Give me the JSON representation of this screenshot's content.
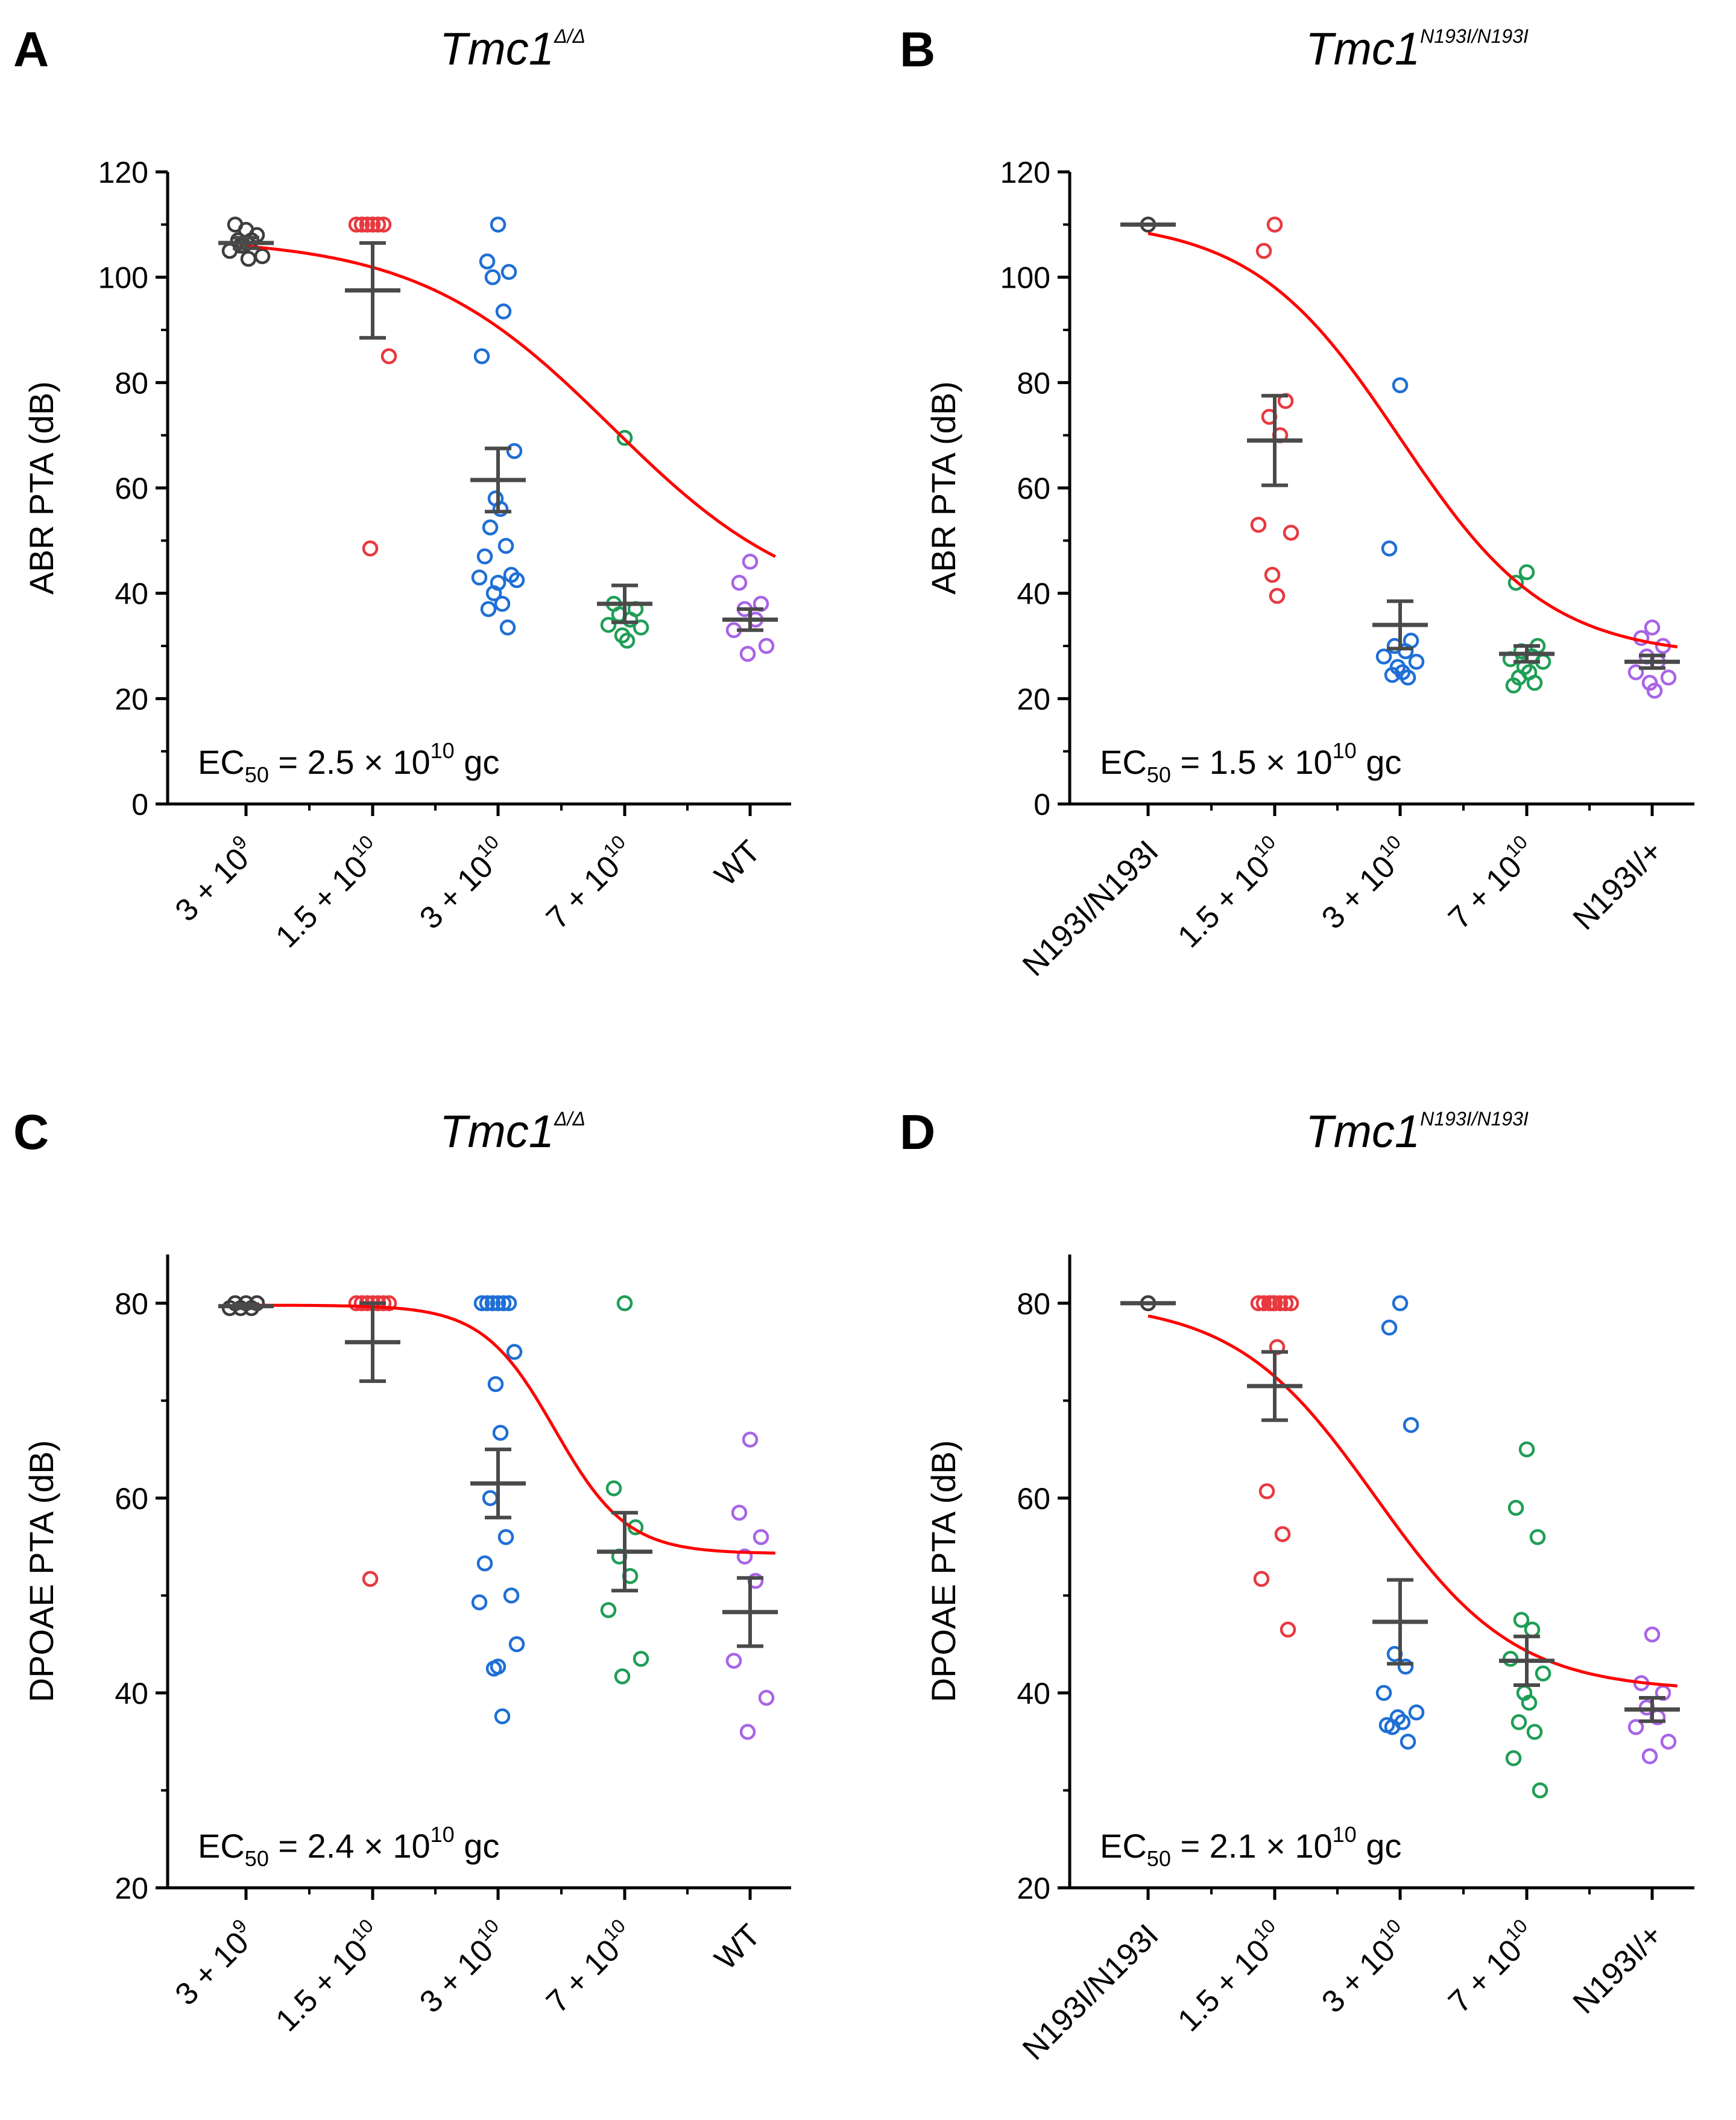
{
  "colors": {
    "group_colors": [
      "#3d3d3d",
      "#e8393f",
      "#1f6fd6",
      "#1f9e56",
      "#a864e6"
    ],
    "fit": "#ff0000",
    "errorbar": "#4a4a4a",
    "axis": "#000000"
  },
  "chart_data": [
    {
      "type": "scatter",
      "panel_label": "A",
      "title_main": "Tmc1",
      "title_sup": "Δ/Δ",
      "ylabel": "ABR PTA (dB)",
      "ylim": [
        0,
        120
      ],
      "yticks": [
        "0",
        "20",
        "40",
        "60",
        "80",
        "100",
        "120"
      ],
      "ytick_values": [
        0,
        20,
        40,
        60,
        80,
        100,
        120
      ],
      "categories": [
        {
          "base": "3 + 10",
          "sup": "9"
        },
        {
          "base": "1.5 + 10",
          "sup": "10"
        },
        {
          "base": "3 + 10",
          "sup": "10"
        },
        {
          "base": "7 + 10",
          "sup": "10"
        },
        {
          "base": "WT",
          "sup": ""
        }
      ],
      "ec50": {
        "prefix": "EC",
        "sub": "50",
        "value": " = 2.5 × 10",
        "exp": "10",
        "unit": " gc"
      },
      "series": [
        {
          "name": "3 + 10^9",
          "points": [
            109,
            110,
            108,
            106,
            107,
            105,
            104,
            106,
            103.5,
            107
          ],
          "mean": 106.5,
          "sem": 1.0
        },
        {
          "name": "1.5 + 10^10",
          "points": [
            110,
            110,
            110,
            110,
            110,
            110,
            85,
            48.5
          ],
          "mean": 97.5,
          "sem": 9.0
        },
        {
          "name": "3 + 10^10",
          "points": [
            110,
            103,
            101,
            100,
            93.5,
            85,
            67,
            58,
            56,
            52.5,
            49,
            47,
            43.5,
            43,
            42.5,
            42,
            40,
            38,
            37,
            33.5
          ],
          "mean": 61.5,
          "sem": 6.0
        },
        {
          "name": "7 + 10^10",
          "points": [
            69.5,
            38,
            37,
            36,
            35,
            34,
            33.5,
            32,
            31
          ],
          "mean": 38,
          "sem": 3.5
        },
        {
          "name": "WT",
          "points": [
            46,
            42,
            38,
            37,
            35,
            33,
            30,
            28.5
          ],
          "mean": 35,
          "sem": 2.0
        }
      ],
      "fit_curve": {
        "top": 107.5,
        "bottom": 35.8,
        "center": 2.9,
        "slope": 1.3
      }
    },
    {
      "type": "scatter",
      "panel_label": "B",
      "title_main": "Tmc1",
      "title_sup": "N193I/N193I",
      "ylabel": "ABR PTA (dB)",
      "ylim": [
        0,
        120
      ],
      "yticks": [
        "0",
        "20",
        "40",
        "60",
        "80",
        "100",
        "120"
      ],
      "ytick_values": [
        0,
        20,
        40,
        60,
        80,
        100,
        120
      ],
      "categories": [
        {
          "base": "N193I/N193I",
          "sup": ""
        },
        {
          "base": "1.5 + 10",
          "sup": "10"
        },
        {
          "base": "3 + 10",
          "sup": "10"
        },
        {
          "base": "7 + 10",
          "sup": "10"
        },
        {
          "base": "N193I/+",
          "sup": ""
        }
      ],
      "ec50": {
        "prefix": "EC",
        "sub": "50",
        "value": " = 1.5 × 10",
        "exp": "10",
        "unit": " gc"
      },
      "series": [
        {
          "name": "N193I/N193I",
          "points": [
            110
          ],
          "mean": 110,
          "sem": 0
        },
        {
          "name": "1.5 + 10^10",
          "points": [
            110,
            105,
            76.5,
            73.5,
            70,
            53,
            51.5,
            43.5,
            39.5
          ],
          "mean": 69,
          "sem": 8.5
        },
        {
          "name": "3 + 10^10",
          "points": [
            79.5,
            48.5,
            31,
            30,
            29,
            28,
            27,
            26,
            25,
            24.5,
            24
          ],
          "mean": 34,
          "sem": 4.5
        },
        {
          "name": "7 + 10^10",
          "points": [
            44,
            42,
            30,
            29,
            28,
            27.5,
            27,
            26,
            25,
            24,
            23,
            22.5
          ],
          "mean": 28.5,
          "sem": 1.5
        },
        {
          "name": "N193I/+",
          "points": [
            33.5,
            31.5,
            30,
            28,
            27,
            25,
            24,
            23,
            21.5
          ],
          "mean": 27,
          "sem": 1.2
        }
      ],
      "fit_curve": {
        "top": 111,
        "bottom": 27.9,
        "center": 2.0,
        "slope": 1.7
      }
    },
    {
      "type": "scatter",
      "panel_label": "C",
      "title_main": "Tmc1",
      "title_sup": "Δ/Δ",
      "ylabel": "DPOAE PTA (dB)",
      "ylim": [
        20,
        85
      ],
      "yticks": [
        "20",
        "40",
        "60",
        "80"
      ],
      "ytick_values": [
        20,
        40,
        60,
        80
      ],
      "categories": [
        {
          "base": "3 + 10",
          "sup": "9"
        },
        {
          "base": "1.5 + 10",
          "sup": "10"
        },
        {
          "base": "3 + 10",
          "sup": "10"
        },
        {
          "base": "7 + 10",
          "sup": "10"
        },
        {
          "base": "WT",
          "sup": ""
        }
      ],
      "ec50": {
        "prefix": "EC",
        "sub": "50",
        "value": " = 2.4 × 10",
        "exp": "10",
        "unit": " gc"
      },
      "series": [
        {
          "name": "3 + 10^9",
          "points": [
            80,
            80,
            80,
            79.5,
            79.5,
            79.5
          ],
          "mean": 79.7,
          "sem": 0.2
        },
        {
          "name": "1.5 + 10^10",
          "points": [
            80,
            80,
            80,
            80,
            80,
            80,
            80,
            51.7
          ],
          "mean": 76,
          "sem": 4.0
        },
        {
          "name": "3 + 10^10",
          "points": [
            80,
            80,
            80,
            80,
            80,
            80,
            75,
            71.7,
            66.7,
            60,
            56,
            53.3,
            50,
            49.3,
            45,
            42.7,
            42.5,
            37.6
          ],
          "mean": 61.5,
          "sem": 3.5
        },
        {
          "name": "7 + 10^10",
          "points": [
            80,
            61,
            57,
            54,
            52,
            48.5,
            43.5,
            41.7
          ],
          "mean": 54.5,
          "sem": 4.0
        },
        {
          "name": "WT",
          "points": [
            66,
            58.5,
            56,
            54,
            51.5,
            43.3,
            39.5,
            36
          ],
          "mean": 48.3,
          "sem": 3.5
        }
      ],
      "fit_curve": {
        "top": 79.8,
        "bottom": 54.3,
        "center": 2.45,
        "slope": 3.5
      }
    },
    {
      "type": "scatter",
      "panel_label": "D",
      "title_main": "Tmc1",
      "title_sup": "N193I/N193I",
      "ylabel": "DPOAE PTA (dB)",
      "ylim": [
        20,
        85
      ],
      "yticks": [
        "20",
        "40",
        "60",
        "80"
      ],
      "ytick_values": [
        20,
        40,
        60,
        80
      ],
      "categories": [
        {
          "base": "N193I/N193I",
          "sup": ""
        },
        {
          "base": "1.5 + 10",
          "sup": "10"
        },
        {
          "base": "3 + 10",
          "sup": "10"
        },
        {
          "base": "7 + 10",
          "sup": "10"
        },
        {
          "base": "N193I/+",
          "sup": ""
        }
      ],
      "ec50": {
        "prefix": "EC",
        "sub": "50",
        "value": " = 2.1 × 10",
        "exp": "10",
        "unit": " gc"
      },
      "series": [
        {
          "name": "N193I/N193I",
          "points": [
            80
          ],
          "mean": 80,
          "sem": 0
        },
        {
          "name": "1.5 + 10^10",
          "points": [
            80,
            80,
            80,
            80,
            80,
            80,
            80,
            80,
            75.5,
            60.7,
            56.3,
            51.7,
            46.5
          ],
          "mean": 71.5,
          "sem": 3.5
        },
        {
          "name": "3 + 10^10",
          "points": [
            80,
            77.5,
            67.5,
            44,
            42.7,
            40,
            38,
            37.5,
            37,
            36.5,
            35,
            36.7
          ],
          "mean": 47.3,
          "sem": 4.3
        },
        {
          "name": "7 + 10^10",
          "points": [
            65,
            59,
            56,
            47.5,
            46.5,
            43.5,
            42,
            40,
            39,
            37,
            36,
            33.3,
            30
          ],
          "mean": 43.3,
          "sem": 2.5
        },
        {
          "name": "N193I/+",
          "points": [
            46,
            41,
            40,
            38.5,
            37.5,
            36.5,
            35,
            33.5
          ],
          "mean": 38.3,
          "sem": 1.2
        }
      ],
      "fit_curve": {
        "top": 80.2,
        "bottom": 40.2,
        "center": 1.8,
        "slope": 1.8
      }
    }
  ]
}
